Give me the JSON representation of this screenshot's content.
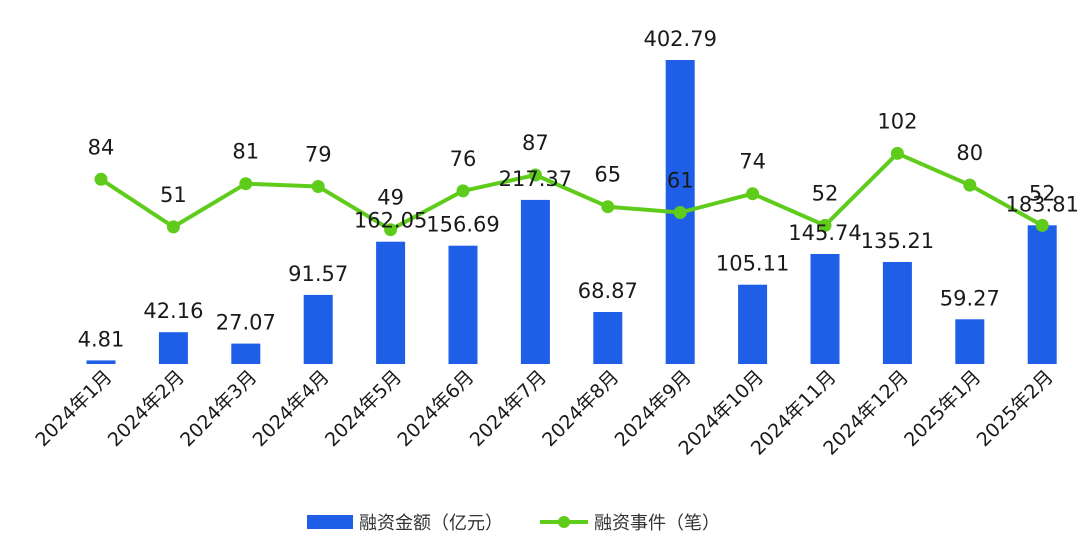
{
  "chart_data": {
    "type": "bar",
    "categories": [
      "2024年1月",
      "2024年2月",
      "2024年3月",
      "2024年4月",
      "2024年5月",
      "2024年6月",
      "2024年7月",
      "2024年8月",
      "2024年9月",
      "2024年10月",
      "2024年11月",
      "2024年12月",
      "2025年1月",
      "2025年2月"
    ],
    "series": [
      {
        "name": "融资金额（亿元）",
        "type": "bar",
        "color": "#1f5fe8",
        "values": [
          4.81,
          42.16,
          27.07,
          91.57,
          162.05,
          156.69,
          217.37,
          68.87,
          402.79,
          105.11,
          145.74,
          135.21,
          59.27,
          183.81
        ],
        "labels": [
          "4.81",
          "42.16",
          "27.07",
          "91.57",
          "162.05",
          "156.69",
          "217.37",
          "68.87",
          "402.79",
          "105.11",
          "145.74",
          "135.21",
          "59.27",
          "183.81"
        ]
      },
      {
        "name": "融资事件（笔）",
        "type": "line",
        "color": "#5fcc1c",
        "values": [
          84,
          51,
          81,
          79,
          49,
          76,
          87,
          65,
          61,
          74,
          52,
          102,
          80,
          52
        ],
        "labels": [
          "84",
          "51",
          "81",
          "79",
          "49",
          "76",
          "87",
          "65",
          "61",
          "74",
          "52",
          "102",
          "80",
          "52"
        ]
      }
    ],
    "legend_position": "bottom",
    "grid": false
  }
}
